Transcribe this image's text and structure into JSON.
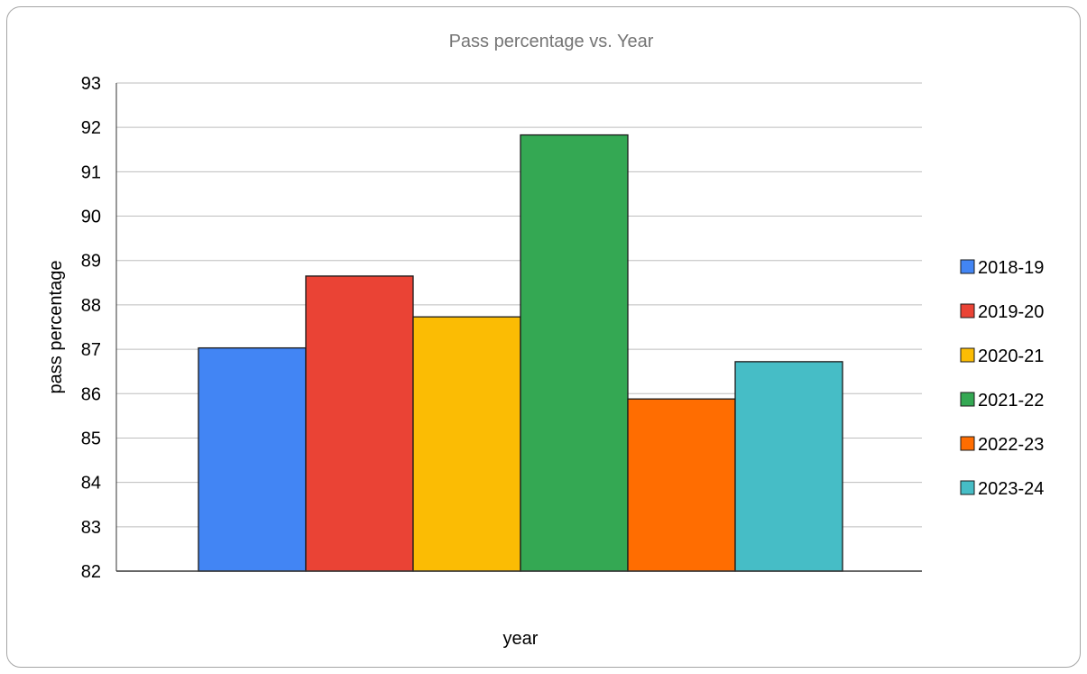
{
  "chart_data": {
    "type": "bar",
    "title": "Pass percentage vs. Year",
    "xlabel": "year",
    "ylabel": "pass percentage",
    "ylim": [
      82,
      93
    ],
    "yticks": [
      "82",
      "83",
      "84",
      "85",
      "86",
      "87",
      "88",
      "89",
      "90",
      "91",
      "92",
      "93"
    ],
    "grid": true,
    "legend_position": "right",
    "series": [
      {
        "name": "2018-19",
        "value": 87.03,
        "color": "#4285f4"
      },
      {
        "name": "2019-20",
        "value": 88.65,
        "color": "#ea4335"
      },
      {
        "name": "2020-21",
        "value": 87.73,
        "color": "#fbbc04"
      },
      {
        "name": "2021-22",
        "value": 91.83,
        "color": "#34a853"
      },
      {
        "name": "2022-23",
        "value": 85.88,
        "color": "#ff6d01"
      },
      {
        "name": "2023-24",
        "value": 86.72,
        "color": "#46bdc6"
      }
    ]
  }
}
